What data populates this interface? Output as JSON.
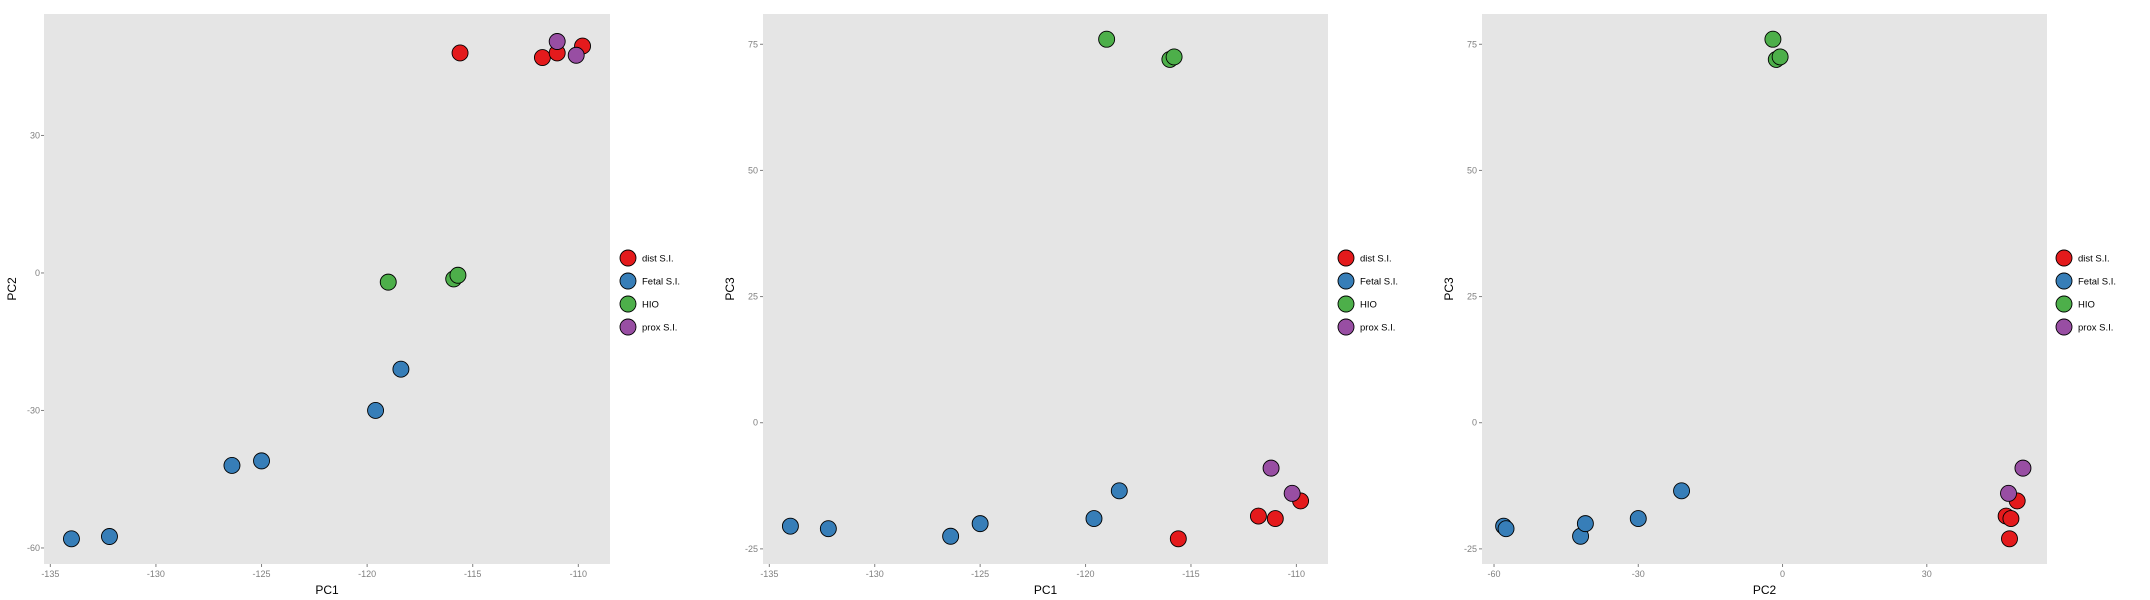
{
  "legend_items": [
    {
      "label": "dist S.I.",
      "color": "#e41a1c"
    },
    {
      "label": "Fetal S.I.",
      "color": "#377eb8"
    },
    {
      "label": "HIO",
      "color": "#4daf4a"
    },
    {
      "label": "prox S.I.",
      "color": "#984ea3"
    }
  ],
  "colors": {
    "panel_background": "#e5e5e5",
    "tick_label": "#7f7f7f",
    "point_outline": "#000000"
  },
  "chart_data": [
    {
      "type": "scatter",
      "xlabel": "PC1",
      "ylabel": "PC2",
      "xlim": [
        -135.3,
        -108.5
      ],
      "ylim": [
        -63.5,
        56.5
      ],
      "xticks": [
        -135,
        -130,
        -125,
        -120,
        -115,
        -110
      ],
      "yticks": [
        -60,
        -30,
        0,
        30
      ],
      "series": [
        {
          "name": "dist S.I.",
          "color": "#e41a1c",
          "points": [
            [
              -115.6,
              48
            ],
            [
              -111.7,
              47
            ],
            [
              -111.0,
              48
            ],
            [
              -109.8,
              49.5
            ]
          ]
        },
        {
          "name": "Fetal S.I.",
          "color": "#377eb8",
          "points": [
            [
              -134.0,
              -58
            ],
            [
              -132.2,
              -57.5
            ],
            [
              -126.4,
              -42
            ],
            [
              -125.0,
              -41
            ],
            [
              -119.6,
              -30
            ],
            [
              -118.4,
              -21
            ]
          ]
        },
        {
          "name": "HIO",
          "color": "#4daf4a",
          "points": [
            [
              -119.0,
              -2
            ],
            [
              -115.9,
              -1.3
            ],
            [
              -115.7,
              -0.5
            ]
          ]
        },
        {
          "name": "prox S.I.",
          "color": "#984ea3",
          "points": [
            [
              -111.0,
              50.5
            ],
            [
              -110.1,
              47.5
            ]
          ]
        }
      ]
    },
    {
      "type": "scatter",
      "xlabel": "PC1",
      "ylabel": "PC3",
      "xlim": [
        -135.3,
        -108.5
      ],
      "ylim": [
        -28.0,
        81.0
      ],
      "xticks": [
        -135,
        -130,
        -125,
        -120,
        -115,
        -110
      ],
      "yticks": [
        -25,
        0,
        25,
        50,
        75
      ],
      "series": [
        {
          "name": "dist S.I.",
          "color": "#e41a1c",
          "points": [
            [
              -115.6,
              -23
            ],
            [
              -111.8,
              -18.5
            ],
            [
              -111.0,
              -19
            ],
            [
              -109.8,
              -15.5
            ]
          ]
        },
        {
          "name": "Fetal S.I.",
          "color": "#377eb8",
          "points": [
            [
              -134.0,
              -20.5
            ],
            [
              -132.2,
              -21
            ],
            [
              -126.4,
              -22.5
            ],
            [
              -125.0,
              -20
            ],
            [
              -119.6,
              -19
            ],
            [
              -118.4,
              -13.5
            ]
          ]
        },
        {
          "name": "HIO",
          "color": "#4daf4a",
          "points": [
            [
              -119.0,
              76
            ],
            [
              -116.0,
              72
            ],
            [
              -115.8,
              72.5
            ]
          ]
        },
        {
          "name": "prox S.I.",
          "color": "#984ea3",
          "points": [
            [
              -111.2,
              -9
            ],
            [
              -110.2,
              -14
            ]
          ]
        }
      ]
    },
    {
      "type": "scatter",
      "xlabel": "PC2",
      "ylabel": "PC3",
      "xlim": [
        -62.5,
        55.0
      ],
      "ylim": [
        -28.0,
        81.0
      ],
      "xticks": [
        -60,
        -30,
        0,
        30
      ],
      "yticks": [
        -25,
        0,
        25,
        50,
        75
      ],
      "series": [
        {
          "name": "dist S.I.",
          "color": "#e41a1c",
          "points": [
            [
              46.5,
              -18.5
            ],
            [
              47.5,
              -19
            ],
            [
              47.2,
              -23
            ],
            [
              48.8,
              -15.5
            ]
          ]
        },
        {
          "name": "Fetal S.I.",
          "color": "#377eb8",
          "points": [
            [
              -58.0,
              -20.5
            ],
            [
              -57.5,
              -21
            ],
            [
              -42.0,
              -22.5
            ],
            [
              -41.0,
              -20
            ],
            [
              -30.0,
              -19
            ],
            [
              -21.0,
              -13.5
            ]
          ]
        },
        {
          "name": "HIO",
          "color": "#4daf4a",
          "points": [
            [
              -2.0,
              76
            ],
            [
              -1.3,
              72
            ],
            [
              -0.5,
              72.5
            ]
          ]
        },
        {
          "name": "prox S.I.",
          "color": "#984ea3",
          "points": [
            [
              50.0,
              -9
            ],
            [
              47.0,
              -14
            ]
          ]
        }
      ]
    }
  ]
}
